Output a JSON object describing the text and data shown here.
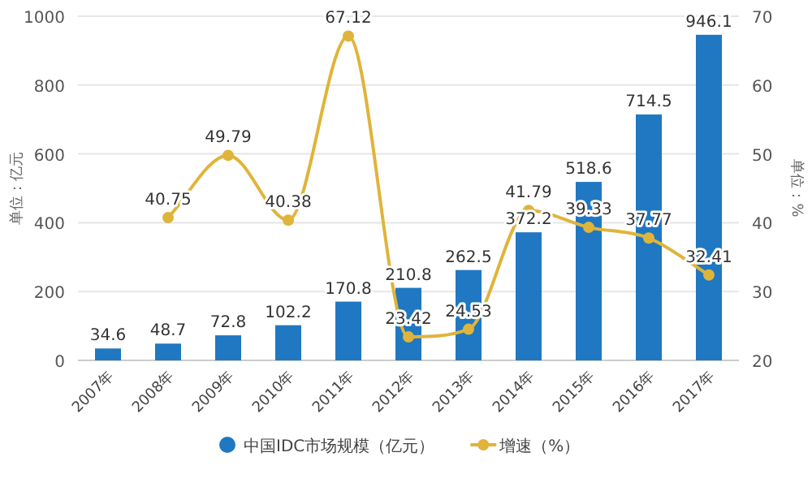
{
  "chart_data": {
    "type": "bar",
    "categories": [
      "2007年",
      "2008年",
      "2009年",
      "2010年",
      "2011年",
      "2012年",
      "2013年",
      "2014年",
      "2015年",
      "2016年",
      "2017年"
    ],
    "series": [
      {
        "name": "中国IDC市场规模（亿元）",
        "color": "#1f78c1",
        "values": [
          34.6,
          48.7,
          72.8,
          102.2,
          170.8,
          210.8,
          262.5,
          372.2,
          518.6,
          714.5,
          946.1
        ]
      },
      {
        "name": "增速（%）",
        "type": "line",
        "axis": "y2",
        "color": "#e0b43a",
        "values": [
          null,
          40.75,
          49.79,
          40.38,
          67.12,
          23.42,
          24.53,
          41.79,
          39.33,
          37.77,
          32.41
        ]
      }
    ],
    "ylabel": "单位：亿元",
    "y2label": "单位：%",
    "ylim": [
      0,
      1000
    ],
    "yticks": [
      0,
      200,
      400,
      600,
      800,
      1000
    ],
    "y2lim": [
      20,
      70
    ],
    "y2ticks": [
      20,
      30,
      40,
      50,
      60,
      70
    ],
    "data_labels": true,
    "grid": "y",
    "legend": "bottom",
    "marker": "circle",
    "line_style": "solid"
  }
}
